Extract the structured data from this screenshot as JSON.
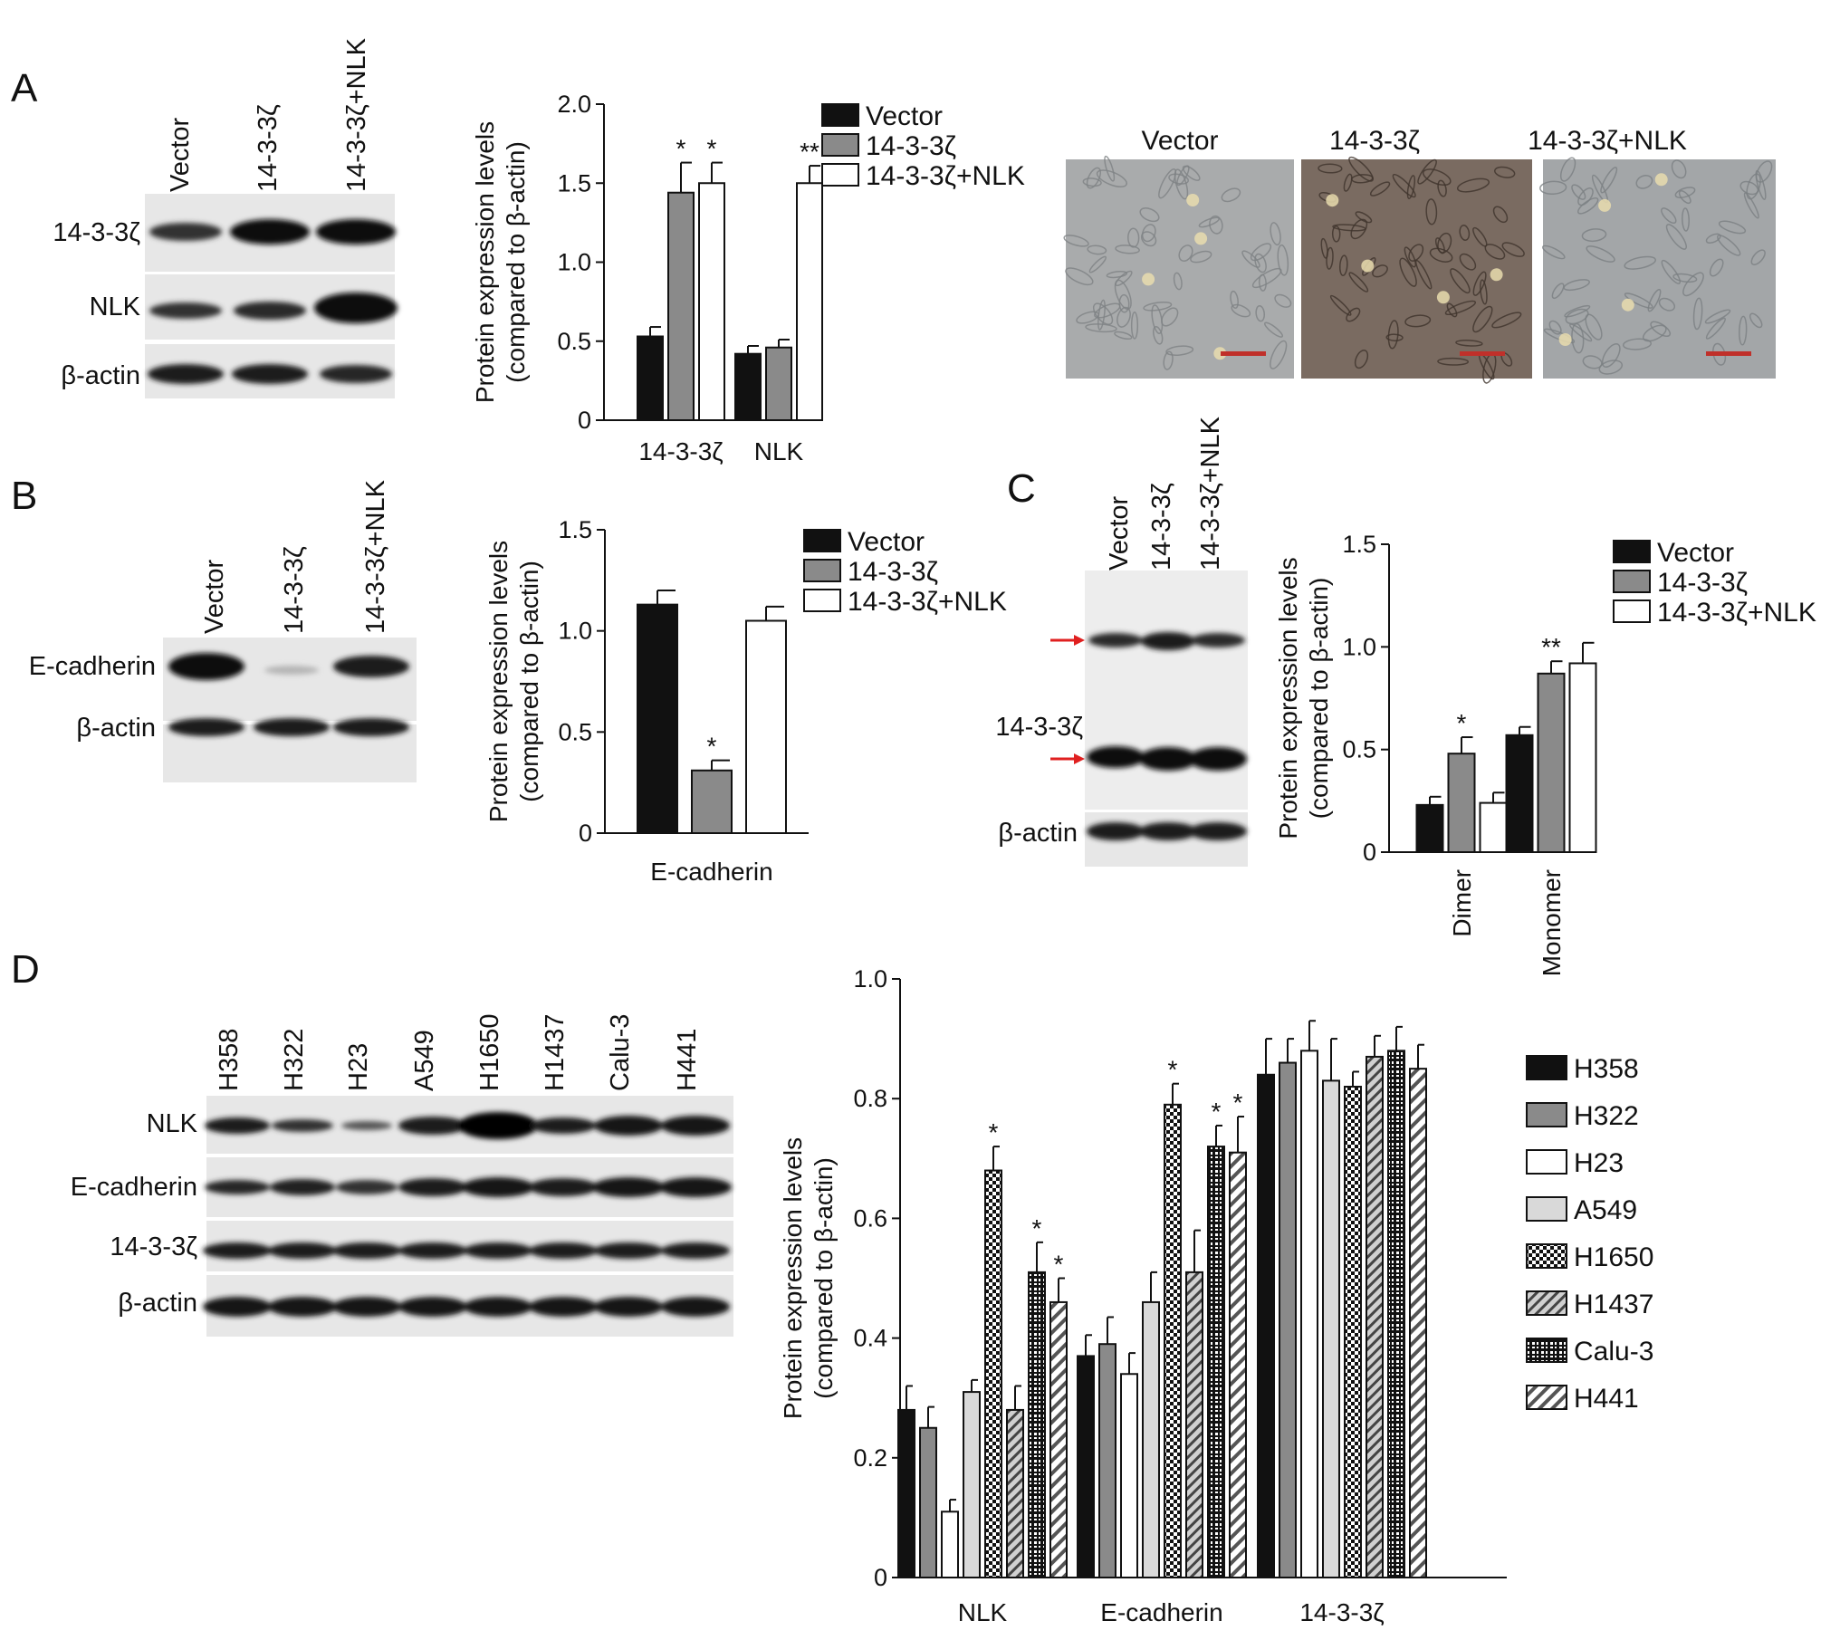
{
  "panels": {
    "A": {
      "label": "A",
      "blot_lanes": [
        "Vector",
        "14-3-3ζ",
        "14-3-3ζ+NLK"
      ],
      "blot_rows": [
        "14-3-3ζ",
        "NLK",
        "β-actin"
      ],
      "micro_titles": [
        "Vector",
        "14-3-3ζ",
        "14-3-3ζ+NLK"
      ]
    },
    "B": {
      "label": "B",
      "blot_lanes": [
        "Vector",
        "14-3-3ζ",
        "14-3-3ζ+NLK"
      ],
      "blot_rows": [
        "E-cadherin",
        "β-actin"
      ]
    },
    "C": {
      "label": "C",
      "blot_lanes": [
        "Vector",
        "14-3-3ζ",
        "14-3-3ζ+NLK"
      ],
      "blot_rows": [
        "14-3-3ζ",
        "β-actin"
      ]
    },
    "D": {
      "label": "D",
      "blot_lanes": [
        "H358",
        "H322",
        "H23",
        "A549",
        "H1650",
        "H1437",
        "Calu-3",
        "H441"
      ],
      "blot_rows": [
        "NLK",
        "E-cadherin",
        "14-3-3ζ",
        "β-actin"
      ]
    }
  },
  "chart_data": [
    {
      "id": "A",
      "type": "bar",
      "ylabel_lines": [
        "Protein expression levels",
        "(compared to β-actin)"
      ],
      "ylim": [
        0,
        2.0
      ],
      "yticks": [
        "0",
        "0.5",
        "1.0",
        "1.5",
        "2.0"
      ],
      "categories": [
        "14-3-3ζ",
        "NLK"
      ],
      "series": [
        {
          "name": "Vector",
          "values": [
            0.53,
            0.42
          ],
          "errors": [
            0.06,
            0.05
          ],
          "stars": [
            "",
            ""
          ]
        },
        {
          "name": "14-3-3ζ",
          "values": [
            1.44,
            0.46
          ],
          "errors": [
            0.19,
            0.05
          ],
          "stars": [
            "*",
            ""
          ]
        },
        {
          "name": "14-3-3ζ+NLK",
          "values": [
            1.5,
            1.5
          ],
          "errors": [
            0.13,
            0.11
          ],
          "stars": [
            "*",
            "**"
          ]
        }
      ]
    },
    {
      "id": "B",
      "type": "bar",
      "ylabel_lines": [
        "Protein expression levels",
        "(compared to β-actin)"
      ],
      "ylim": [
        0,
        1.5
      ],
      "yticks": [
        "0",
        "0.5",
        "1.0",
        "1.5"
      ],
      "categories": [
        "E-cadherin"
      ],
      "series": [
        {
          "name": "Vector",
          "values": [
            1.13
          ],
          "errors": [
            0.07
          ],
          "stars": [
            ""
          ]
        },
        {
          "name": "14-3-3ζ",
          "values": [
            0.31
          ],
          "errors": [
            0.05
          ],
          "stars": [
            "*"
          ]
        },
        {
          "name": "14-3-3ζ+NLK",
          "values": [
            1.05
          ],
          "errors": [
            0.07
          ],
          "stars": [
            ""
          ]
        }
      ]
    },
    {
      "id": "C",
      "type": "bar",
      "ylabel_lines": [
        "Protein expression levels",
        "(compared to β-actin)"
      ],
      "ylim": [
        0,
        1.5
      ],
      "yticks": [
        "0",
        "0.5",
        "1.0",
        "1.5"
      ],
      "categories": [
        "Dimer",
        "Monomer"
      ],
      "series": [
        {
          "name": "Vector",
          "values": [
            0.23,
            0.57
          ],
          "errors": [
            0.04,
            0.04
          ],
          "stars": [
            "",
            ""
          ]
        },
        {
          "name": "14-3-3ζ",
          "values": [
            0.48,
            0.87
          ],
          "errors": [
            0.08,
            0.06
          ],
          "stars": [
            "*",
            "**"
          ]
        },
        {
          "name": "14-3-3ζ+NLK",
          "values": [
            0.24,
            0.92
          ],
          "errors": [
            0.05,
            0.1
          ],
          "stars": [
            "",
            ""
          ]
        }
      ]
    },
    {
      "id": "D",
      "type": "bar",
      "ylabel_lines": [
        "Protein expression levels",
        "(compared to β-actin)"
      ],
      "ylim": [
        0,
        1.0
      ],
      "yticks": [
        "0",
        "0.2",
        "0.4",
        "0.6",
        "0.8",
        "1.0"
      ],
      "categories": [
        "NLK",
        "E-cadherin",
        "14-3-3ζ"
      ],
      "series": [
        {
          "name": "H358",
          "values": [
            0.28,
            0.37,
            0.84
          ],
          "errors": [
            0.04,
            0.035,
            0.06
          ],
          "stars": [
            "",
            "",
            ""
          ]
        },
        {
          "name": "H322",
          "values": [
            0.25,
            0.39,
            0.86
          ],
          "errors": [
            0.035,
            0.045,
            0.04
          ],
          "stars": [
            "",
            "",
            ""
          ]
        },
        {
          "name": "H23",
          "values": [
            0.11,
            0.34,
            0.88
          ],
          "errors": [
            0.02,
            0.035,
            0.05
          ],
          "stars": [
            "",
            "",
            ""
          ]
        },
        {
          "name": "A549",
          "values": [
            0.31,
            0.46,
            0.83
          ],
          "errors": [
            0.02,
            0.05,
            0.07
          ],
          "stars": [
            "",
            "",
            ""
          ]
        },
        {
          "name": "H1650",
          "values": [
            0.68,
            0.79,
            0.82
          ],
          "errors": [
            0.04,
            0.035,
            0.025
          ],
          "stars": [
            "*",
            "*",
            ""
          ]
        },
        {
          "name": "H1437",
          "values": [
            0.28,
            0.51,
            0.87
          ],
          "errors": [
            0.04,
            0.07,
            0.035
          ],
          "stars": [
            "",
            "",
            ""
          ]
        },
        {
          "name": "Calu-3",
          "values": [
            0.51,
            0.72,
            0.88
          ],
          "errors": [
            0.05,
            0.035,
            0.04
          ],
          "stars": [
            "*",
            "*",
            ""
          ]
        },
        {
          "name": "H441",
          "values": [
            0.46,
            0.71,
            0.85
          ],
          "errors": [
            0.04,
            0.06,
            0.04
          ],
          "stars": [
            "*",
            "*",
            ""
          ]
        }
      ]
    }
  ],
  "colors": {
    "black": "#111111",
    "darkgray": "#8a8a8a",
    "lightgray": "#d9d9d9",
    "white": "#ffffff",
    "red_arrow": "#e02020"
  }
}
